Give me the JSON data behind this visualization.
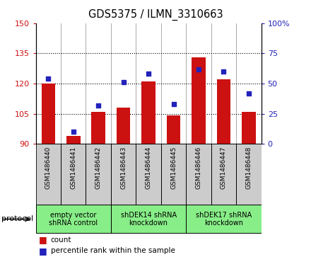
{
  "title": "GDS5375 / ILMN_3310663",
  "samples": [
    "GSM1486440",
    "GSM1486441",
    "GSM1486442",
    "GSM1486443",
    "GSM1486444",
    "GSM1486445",
    "GSM1486446",
    "GSM1486447",
    "GSM1486448"
  ],
  "counts": [
    120,
    94,
    106,
    108,
    121,
    104,
    133,
    122,
    106
  ],
  "percentile_ranks": [
    54,
    10,
    32,
    51,
    58,
    33,
    62,
    60,
    42
  ],
  "ylim_left": [
    90,
    150
  ],
  "ylim_right": [
    0,
    100
  ],
  "yticks_left": [
    90,
    105,
    120,
    135,
    150
  ],
  "yticks_right": [
    0,
    25,
    50,
    75,
    100
  ],
  "ytick_labels_left": [
    "90",
    "105",
    "120",
    "135",
    "150"
  ],
  "ytick_labels_right": [
    "0",
    "25",
    "50",
    "75",
    "100%"
  ],
  "bar_color": "#cc1111",
  "dot_color": "#2222bb",
  "groups": [
    {
      "label": "empty vector\nshRNA control",
      "start": 0,
      "end": 3
    },
    {
      "label": "shDEK14 shRNA\nknockdown",
      "start": 3,
      "end": 6
    },
    {
      "label": "shDEK17 shRNA\nknockdown",
      "start": 6,
      "end": 9
    }
  ],
  "group_color": "#88ee88",
  "legend_count_label": "count",
  "legend_percentile_label": "percentile rank within the sample",
  "protocol_label": "protocol",
  "tick_area_color": "#cccccc",
  "gridline_ticks": [
    105,
    120,
    135
  ],
  "bar_width": 0.55
}
